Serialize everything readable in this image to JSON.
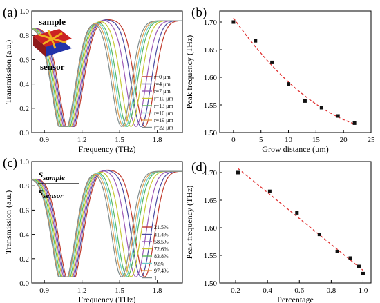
{
  "panel_labels": [
    "(a)",
    "(b)",
    "(c)",
    "(d)"
  ],
  "colors": {
    "seriesA": [
      "#c0392b",
      "#4a4aa0",
      "#9b59b6",
      "#c8c832",
      "#58b85c",
      "#6fcfcf",
      "#e0a055",
      "#7f8c8d"
    ],
    "fit": "#e03030",
    "marker": "#111111",
    "inset_sample": "#cc2222",
    "inset_sensor": "#2233aa",
    "inset_pattern": "#f0b020"
  },
  "inset": {
    "sample_label": "sample",
    "sensor_label": "sensor"
  },
  "ratio_label": {
    "num_main": "s",
    "num_sub": "sample",
    "den_main": "s",
    "den_sub": "sensor"
  },
  "chart_data": [
    {
      "id": "a",
      "type": "line",
      "xlabel": "Frequency (THz)",
      "ylabel": "Transmission (a.u.)",
      "xlim": [
        0.8,
        2.0
      ],
      "ylim": [
        0.0,
        1.0
      ],
      "xticks": [
        "0.9",
        "1.2",
        "1.5",
        "1.8"
      ],
      "yticks": [
        "0.0",
        "0.2",
        "0.4",
        "0.6",
        "0.8",
        "1.0"
      ],
      "legend_position": "lower-right",
      "series": [
        {
          "name": "r=0 μm",
          "dip1": 1.11,
          "dip2": 1.7
        },
        {
          "name": "r=4 μm",
          "dip1": 1.1,
          "dip2": 1.67
        },
        {
          "name": "r=7 μm",
          "dip1": 1.09,
          "dip2": 1.63
        },
        {
          "name": "r=10 μm",
          "dip1": 1.08,
          "dip2": 1.59
        },
        {
          "name": "r=13 μm",
          "dip1": 1.07,
          "dip2": 1.56
        },
        {
          "name": "r=16 μm",
          "dip1": 1.06,
          "dip2": 1.545
        },
        {
          "name": "r=19 μm",
          "dip1": 1.055,
          "dip2": 1.53
        },
        {
          "name": "r=22 μm",
          "dip1": 1.05,
          "dip2": 1.515
        }
      ]
    },
    {
      "id": "b",
      "type": "scatter",
      "xlabel": "Grow distance (μm)",
      "ylabel": "Peak frequency (THz)",
      "xlim": [
        -2.5,
        25
      ],
      "ylim": [
        1.5,
        1.72
      ],
      "xticks": [
        "0",
        "5",
        "10",
        "15",
        "20",
        "25"
      ],
      "yticks": [
        "1.50",
        "1.55",
        "1.60",
        "1.65",
        "1.70"
      ],
      "x": [
        0,
        4,
        7,
        10,
        13,
        16,
        19,
        22
      ],
      "y": [
        1.7,
        1.666,
        1.627,
        1.588,
        1.557,
        1.545,
        1.53,
        1.517
      ],
      "fit": "quadratic dashed"
    },
    {
      "id": "c",
      "type": "line",
      "xlabel": "Frequency (THz)",
      "ylabel": "Transmission (a.u.)",
      "xlim": [
        0.8,
        2.0
      ],
      "ylim": [
        0.0,
        1.0
      ],
      "xticks": [
        "0.9",
        "1.2",
        "1.5",
        "1.8"
      ],
      "yticks": [
        "0.0",
        "0.2",
        "0.4",
        "0.6",
        "0.8",
        "1.0"
      ],
      "legend_position": "lower-right",
      "series": [
        {
          "name": "21.5%",
          "dip1": 1.11,
          "dip2": 1.7
        },
        {
          "name": "41.4%",
          "dip1": 1.1,
          "dip2": 1.67
        },
        {
          "name": "58.5%",
          "dip1": 1.09,
          "dip2": 1.63
        },
        {
          "name": "72.6%",
          "dip1": 1.08,
          "dip2": 1.59
        },
        {
          "name": "83.8%",
          "dip1": 1.07,
          "dip2": 1.56
        },
        {
          "name": "92%",
          "dip1": 1.06,
          "dip2": 1.545
        },
        {
          "name": "97.4%",
          "dip1": 1.055,
          "dip2": 1.53
        },
        {
          "name": "1",
          "dip1": 1.05,
          "dip2": 1.515
        }
      ]
    },
    {
      "id": "d",
      "type": "scatter",
      "xlabel": "Percentage",
      "ylabel": "Peak frequency (THz)",
      "xlim": [
        0.1,
        1.05
      ],
      "ylim": [
        1.5,
        1.72
      ],
      "xticks": [
        "0.2",
        "0.4",
        "0.6",
        "0.8",
        "1.0"
      ],
      "yticks": [
        "1.50",
        "1.55",
        "1.60",
        "1.65",
        "1.70"
      ],
      "x": [
        0.215,
        0.414,
        0.585,
        0.726,
        0.838,
        0.92,
        0.974,
        1.0
      ],
      "y": [
        1.7,
        1.666,
        1.627,
        1.588,
        1.557,
        1.545,
        1.53,
        1.517
      ],
      "fit": "linear dashed"
    }
  ]
}
